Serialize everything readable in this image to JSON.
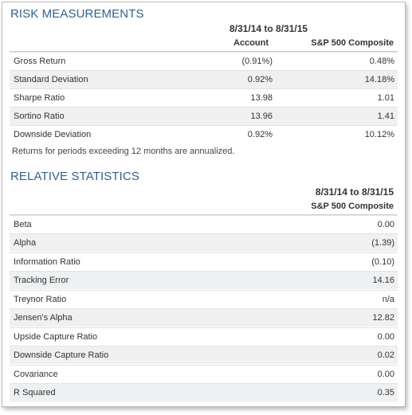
{
  "risk": {
    "title": "RISK MEASUREMENTS",
    "period": "8/31/14 to 8/31/15",
    "col_account": "Account",
    "col_benchmark": "S&P 500 Composite",
    "rows": [
      {
        "label": "Gross Return",
        "account": "(0.91%)",
        "benchmark": "0.48%"
      },
      {
        "label": "Standard Deviation",
        "account": "0.92%",
        "benchmark": "14.18%"
      },
      {
        "label": "Sharpe Ratio",
        "account": "13.98",
        "benchmark": "1.01"
      },
      {
        "label": "Sortino Ratio",
        "account": "13.96",
        "benchmark": "1.41"
      },
      {
        "label": "Downside Deviation",
        "account": "0.92%",
        "benchmark": "10.12%"
      }
    ],
    "note": "Returns for periods exceeding 12 months are annualized."
  },
  "relative": {
    "title": "RELATIVE STATISTICS",
    "period": "8/31/14 to 8/31/15",
    "col_benchmark": "S&P 500 Composite",
    "rows": [
      {
        "label": "Beta",
        "value": "0.00"
      },
      {
        "label": "Alpha",
        "value": "(1.39)"
      },
      {
        "label": "Information Ratio",
        "value": "(0.10)"
      },
      {
        "label": "Tracking Error",
        "value": "14.16"
      },
      {
        "label": "Treynor Ratio",
        "value": "n/a"
      },
      {
        "label": "Jensen's Alpha",
        "value": "12.82"
      },
      {
        "label": "Upside Capture Ratio",
        "value": "0.00"
      },
      {
        "label": "Downside Capture Ratio",
        "value": "0.02"
      },
      {
        "label": "Covariance",
        "value": "0.00"
      },
      {
        "label": "R Squared",
        "value": "0.35"
      }
    ]
  },
  "colors": {
    "title": "#2f5f95",
    "row_alt": "#eef0f2",
    "border": "#b9b9b9"
  }
}
